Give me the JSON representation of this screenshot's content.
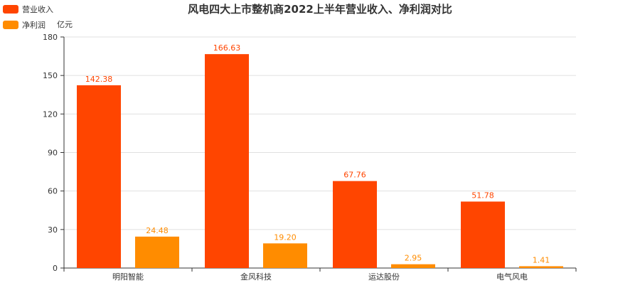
{
  "chart_data": {
    "type": "bar",
    "title": "风电四大上市整机商2022上半年营业收入、净利润对比",
    "y_unit": "亿元",
    "categories": [
      "明阳智能",
      "金风科技",
      "运达股份",
      "电气风电"
    ],
    "series": [
      {
        "name": "营业收入",
        "color": "#ff4500",
        "values": [
          142.38,
          166.63,
          67.76,
          51.78
        ],
        "labels": [
          "142.38",
          "166.63",
          "67.76",
          "51.78"
        ]
      },
      {
        "name": "净利润",
        "color": "#ff8c00",
        "values": [
          24.48,
          19.2,
          2.95,
          1.41
        ],
        "labels": [
          "24.48",
          "19.20",
          "2.95",
          "1.41"
        ]
      }
    ],
    "ylim": [
      0,
      180
    ],
    "yticks": [
      0,
      30,
      60,
      90,
      120,
      150,
      180
    ],
    "grid": true,
    "legend": "top-left"
  }
}
